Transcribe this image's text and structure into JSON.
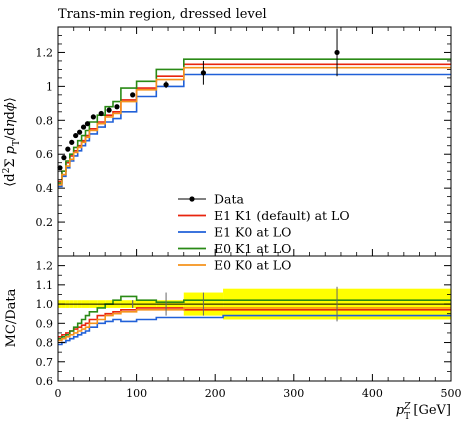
{
  "chart_data": [
    {
      "type": "line",
      "panel": "main",
      "title": "Trans-min region, dressed level",
      "ylabel": "⟨d²Σ pT/dηdϕ⟩",
      "xlim": [
        0,
        500
      ],
      "ylim": [
        0,
        1.35
      ],
      "yticks": [
        "0.2",
        "0.4",
        "0.6",
        "0.8",
        "1",
        "1.2"
      ],
      "ytick_values": [
        0.2,
        0.4,
        0.6,
        0.8,
        1.0,
        1.2
      ],
      "grid": false,
      "legend_position": "center-right",
      "bin_edges": [
        0,
        5,
        10,
        15,
        20,
        25,
        30,
        35,
        40,
        50,
        60,
        70,
        80,
        100,
        125,
        160,
        210,
        500
      ],
      "data": {
        "name": "Data",
        "color": "#000000",
        "x": [
          2.5,
          7.5,
          12.5,
          17.5,
          22.5,
          27.5,
          32.5,
          37.5,
          45,
          55,
          65,
          75,
          95,
          137.5,
          185,
          355
        ],
        "y": [
          0.52,
          0.58,
          0.63,
          0.67,
          0.71,
          0.73,
          0.76,
          0.78,
          0.82,
          0.84,
          0.86,
          0.88,
          0.95,
          1.01,
          1.08,
          1.2
        ],
        "yerr": [
          0.005,
          0.005,
          0.005,
          0.005,
          0.005,
          0.005,
          0.005,
          0.005,
          0.005,
          0.005,
          0.005,
          0.005,
          0.01,
          0.02,
          0.07,
          0.14
        ]
      },
      "series": [
        {
          "name": "E1 K1 (default) at LO",
          "color": "#e8240e",
          "values": [
            0.44,
            0.5,
            0.55,
            0.59,
            0.62,
            0.65,
            0.68,
            0.71,
            0.75,
            0.79,
            0.83,
            0.85,
            0.92,
            0.99,
            1.06,
            1.13,
            1.13
          ]
        },
        {
          "name": "E1 K0 at LO",
          "color": "#2060d8",
          "values": [
            0.41,
            0.47,
            0.52,
            0.56,
            0.59,
            0.62,
            0.65,
            0.68,
            0.72,
            0.76,
            0.79,
            0.81,
            0.85,
            0.94,
            1.0,
            1.07,
            1.07
          ]
        },
        {
          "name": "E0 K1 at LO",
          "color": "#2a8a16",
          "values": [
            0.43,
            0.5,
            0.56,
            0.6,
            0.64,
            0.68,
            0.71,
            0.74,
            0.79,
            0.83,
            0.88,
            0.91,
            0.99,
            1.03,
            1.1,
            1.16,
            1.16
          ]
        },
        {
          "name": "E0 K0 at LO",
          "color": "#f5921c",
          "values": [
            0.42,
            0.48,
            0.53,
            0.57,
            0.61,
            0.64,
            0.67,
            0.7,
            0.74,
            0.78,
            0.82,
            0.84,
            0.91,
            0.98,
            1.04,
            1.11,
            1.11
          ]
        }
      ]
    },
    {
      "type": "line",
      "panel": "ratio",
      "ylabel": "MC/Data",
      "xlabel": "pT^Z [GeV]",
      "xlim": [
        0,
        500
      ],
      "ylim": [
        0.6,
        1.25
      ],
      "xticks": [
        "0",
        "100",
        "200",
        "300",
        "400",
        "500"
      ],
      "xtick_values": [
        0,
        100,
        200,
        300,
        400,
        500
      ],
      "yticks": [
        "0.6",
        "0.7",
        "0.8",
        "0.9",
        "1.0",
        "1.1",
        "1.2"
      ],
      "ytick_values": [
        0.6,
        0.7,
        0.8,
        0.9,
        1.0,
        1.1,
        1.2
      ],
      "band_color": "#ffff00",
      "bin_edges": [
        0,
        5,
        10,
        15,
        20,
        25,
        30,
        35,
        40,
        50,
        60,
        70,
        80,
        100,
        125,
        160,
        210,
        500
      ],
      "band_half_width": [
        0.02,
        0.02,
        0.02,
        0.02,
        0.02,
        0.02,
        0.02,
        0.02,
        0.02,
        0.02,
        0.02,
        0.02,
        0.02,
        0.02,
        0.02,
        0.06,
        0.08
      ],
      "data_err": [
        0.005,
        0.005,
        0.005,
        0.005,
        0.005,
        0.005,
        0.005,
        0.005,
        0.005,
        0.005,
        0.005,
        0.005,
        0.02,
        0.02,
        0.06,
        0.06,
        0.09
      ],
      "series": [
        {
          "name": "E1 K1 (default) at LO",
          "color": "#e8240e",
          "values": [
            0.83,
            0.84,
            0.85,
            0.86,
            0.87,
            0.88,
            0.89,
            0.9,
            0.92,
            0.94,
            0.95,
            0.96,
            0.97,
            0.98,
            0.98,
            0.97,
            0.97
          ]
        },
        {
          "name": "E1 K0 at LO",
          "color": "#2060d8",
          "values": [
            0.79,
            0.8,
            0.81,
            0.82,
            0.83,
            0.84,
            0.85,
            0.86,
            0.88,
            0.9,
            0.91,
            0.92,
            0.91,
            0.92,
            0.93,
            0.93,
            0.94
          ]
        },
        {
          "name": "E0 K1 at LO",
          "color": "#2a8a16",
          "values": [
            0.82,
            0.83,
            0.84,
            0.86,
            0.88,
            0.9,
            0.92,
            0.94,
            0.96,
            0.98,
            1.0,
            1.02,
            1.04,
            1.02,
            1.01,
            1.02,
            1.02
          ]
        },
        {
          "name": "E0 K0 at LO",
          "color": "#f5921c",
          "values": [
            0.81,
            0.82,
            0.83,
            0.84,
            0.85,
            0.86,
            0.87,
            0.88,
            0.9,
            0.92,
            0.94,
            0.95,
            0.96,
            0.97,
            0.97,
            0.98,
            0.98
          ]
        }
      ]
    }
  ]
}
